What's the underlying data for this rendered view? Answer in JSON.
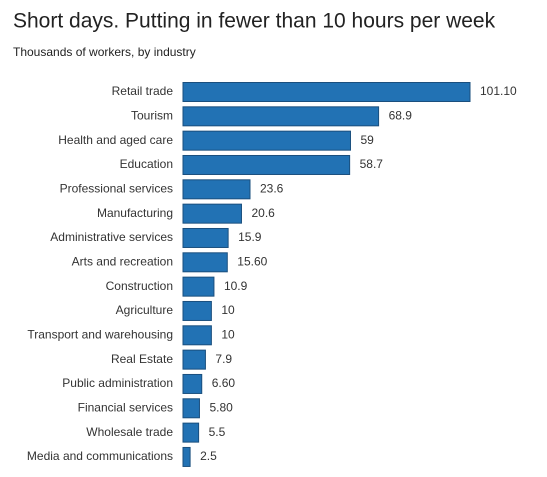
{
  "chart_data": {
    "type": "barh",
    "title": "Short days. Putting in fewer than 10 hours per week",
    "subtitle": "Thousands of workers, by industry",
    "categories": [
      "Retail trade",
      "Tourism",
      "Health and aged care",
      "Education",
      "Professional services",
      "Manufacturing",
      "Administrative services",
      "Arts and recreation",
      "Construction",
      "Agriculture",
      "Transport and warehousing",
      "Real Estate",
      "Public administration",
      "Financial services",
      "Wholesale trade",
      "Media and communications"
    ],
    "values": [
      101.1,
      68.9,
      59,
      58.7,
      23.6,
      20.6,
      15.9,
      15.6,
      10.9,
      10,
      10,
      7.9,
      6.6,
      5.8,
      5.5,
      2.5
    ],
    "value_labels": [
      "101.10",
      "68.9",
      "59",
      "58.7",
      "23.6",
      "20.6",
      "15.9",
      "15.60",
      "10.9",
      "10",
      "10",
      "7.9",
      "6.60",
      "5.80",
      "5.5",
      "2.5"
    ],
    "color": "#2272b4"
  }
}
